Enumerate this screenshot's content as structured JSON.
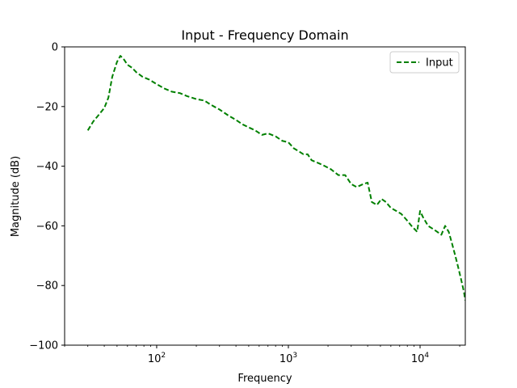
{
  "chart_data": {
    "type": "line",
    "title": "Input - Frequency Domain",
    "xlabel": "Frequency",
    "ylabel": "Magnitude (dB)",
    "xscale": "log",
    "xlim": [
      20,
      22050
    ],
    "ylim": [
      -100,
      0
    ],
    "grid": false,
    "legend_position": "top-right",
    "y_ticks": [
      0,
      -20,
      -40,
      -60,
      -80,
      -100
    ],
    "y_tick_labels": [
      "0",
      "−20",
      "−40",
      "−60",
      "−80",
      "−100"
    ],
    "x_ticks": [
      100,
      1000,
      10000
    ],
    "x_tick_labels": [
      {
        "base": "10",
        "exp": "2"
      },
      {
        "base": "10",
        "exp": "3"
      },
      {
        "base": "10",
        "exp": "4"
      }
    ],
    "series": [
      {
        "name": "Input",
        "color": "#008000",
        "style": "dashed",
        "x": [
          30,
          33,
          36,
          40,
          43,
          46,
          50,
          53,
          56,
          60,
          65,
          70,
          78,
          88,
          100,
          115,
          130,
          150,
          170,
          200,
          230,
          260,
          300,
          350,
          400,
          450,
          500,
          560,
          630,
          700,
          800,
          900,
          1000,
          1100,
          1200,
          1300,
          1400,
          1500,
          1700,
          1900,
          2100,
          2400,
          2700,
          3000,
          3300,
          3700,
          4000,
          4300,
          4700,
          5100,
          5500,
          6000,
          6600,
          7200,
          7900,
          8600,
          9500,
          10000,
          10500,
          11500,
          12500,
          13500,
          14500,
          15500,
          16500,
          17500,
          18500,
          19500,
          20500,
          21500,
          22050
        ],
        "y": [
          -28,
          -25,
          -23,
          -20.5,
          -17,
          -10,
          -5,
          -3,
          -4,
          -6,
          -7,
          -8.5,
          -10,
          -11,
          -12.5,
          -14,
          -15,
          -15.5,
          -16.5,
          -17.5,
          -18,
          -19.5,
          -21,
          -23,
          -24.5,
          -26,
          -27,
          -28,
          -29.5,
          -29,
          -30,
          -31.5,
          -32,
          -34,
          -35,
          -36,
          -36,
          -38,
          -39,
          -40,
          -41,
          -43,
          -43,
          -46,
          -47,
          -46,
          -45.5,
          -52,
          -53,
          -51,
          -52,
          -54,
          -55,
          -56,
          -58,
          -60,
          -62,
          -55,
          -57,
          -60,
          -61,
          -62,
          -63,
          -60,
          -62,
          -66,
          -70,
          -74,
          -78,
          -82,
          -85
        ]
      }
    ]
  }
}
